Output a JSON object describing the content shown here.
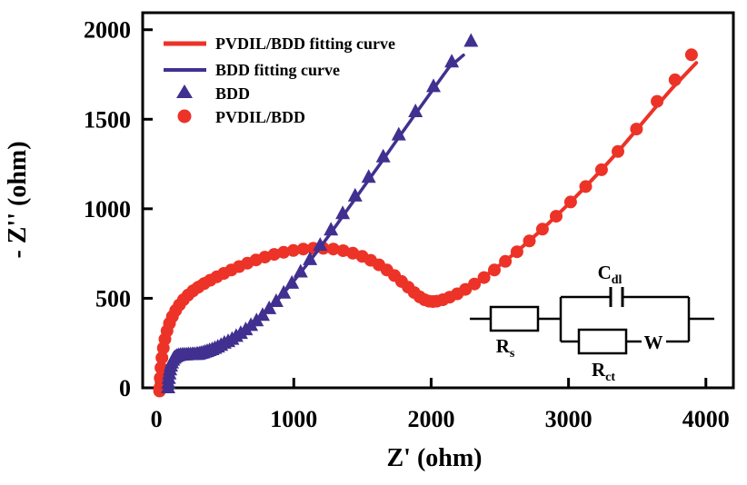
{
  "figure": {
    "xlabel": "Z' (ohm)",
    "ylabel": "- Z'' (ohm)"
  },
  "colors": {
    "red": "#ED3227",
    "navy": "#413090",
    "axis": "#000000",
    "background": "#FFFFFF"
  },
  "legend": {
    "items": [
      {
        "label": "PVDIL/BDD fitting curve",
        "marker": "line",
        "color": "#ED3227"
      },
      {
        "label": "BDD fitting curve",
        "marker": "line",
        "color": "#413090"
      },
      {
        "label": "BDD",
        "marker": "triangle",
        "color": "#413090"
      },
      {
        "label": "PVDIL/BDD",
        "marker": "circle",
        "color": "#ED3227"
      }
    ]
  },
  "inset_circuit": {
    "rs": {
      "main": "R",
      "sub": "s"
    },
    "cdl": {
      "main": "C",
      "sub": "dl"
    },
    "rct": {
      "main": "R",
      "sub": "ct"
    },
    "warburg": "W"
  },
  "chart_data": {
    "type": "scatter",
    "title": "",
    "xlabel": "Z' (ohm)",
    "ylabel": "- Z'' (ohm)",
    "xlim": [
      -100,
      4200
    ],
    "ylim": [
      0,
      2095
    ],
    "grid": false,
    "legend_position": "upper-left",
    "xticks": {
      "values": [
        0,
        1000,
        2000,
        3000,
        4000
      ],
      "labels": [
        "0",
        "1000",
        "2000",
        "3000",
        "4000"
      ]
    },
    "yticks": {
      "values": [
        0,
        500,
        1000,
        1500,
        2000
      ],
      "labels": [
        "0",
        "500",
        "1000",
        "1500",
        "2000"
      ]
    },
    "series": [
      {
        "name": "PVDIL/BDD fitting curve",
        "id": "pvdil-bdd-fit-curve",
        "type": "line",
        "color": "#ED3227",
        "width": 4,
        "points": [
          [
            25,
            0
          ],
          [
            32,
            115
          ],
          [
            44,
            215
          ],
          [
            62,
            300
          ],
          [
            88,
            372
          ],
          [
            122,
            434
          ],
          [
            163,
            487
          ],
          [
            212,
            532
          ],
          [
            268,
            570
          ],
          [
            330,
            601
          ],
          [
            398,
            627
          ],
          [
            472,
            652
          ],
          [
            552,
            675
          ],
          [
            638,
            697
          ],
          [
            730,
            717
          ],
          [
            827,
            736
          ],
          [
            928,
            753
          ],
          [
            1030,
            766
          ],
          [
            1130,
            776
          ],
          [
            1180,
            779
          ],
          [
            1230,
            777
          ],
          [
            1330,
            768
          ],
          [
            1428,
            750
          ],
          [
            1522,
            723
          ],
          [
            1610,
            687
          ],
          [
            1690,
            643
          ],
          [
            1762,
            595
          ],
          [
            1825,
            548
          ],
          [
            1877,
            510
          ],
          [
            1920,
            488
          ],
          [
            1958,
            480
          ],
          [
            1995,
            479
          ],
          [
            2035,
            483
          ],
          [
            2080,
            493
          ],
          [
            2130,
            508
          ],
          [
            2185,
            528
          ],
          [
            2245,
            553
          ],
          [
            2310,
            583
          ],
          [
            2380,
            618
          ],
          [
            2455,
            659
          ],
          [
            2535,
            706
          ],
          [
            2620,
            759
          ],
          [
            2710,
            818
          ],
          [
            2805,
            883
          ],
          [
            2905,
            955
          ],
          [
            3010,
            1034
          ],
          [
            3120,
            1120
          ],
          [
            3235,
            1213
          ],
          [
            3355,
            1315
          ],
          [
            3480,
            1427
          ],
          [
            3615,
            1550
          ],
          [
            3760,
            1678
          ],
          [
            3930,
            1815
          ]
        ]
      },
      {
        "name": "PVDIL/BDD",
        "id": "pvdil-bdd-data",
        "type": "scatter",
        "marker": "circle",
        "size": 7,
        "color": "#ED3227",
        "points": [
          [
            23,
            -18
          ],
          [
            25,
            0
          ],
          [
            28,
            55
          ],
          [
            33,
            112
          ],
          [
            40,
            168
          ],
          [
            50,
            222
          ],
          [
            62,
            272
          ],
          [
            77,
            318
          ],
          [
            95,
            360
          ],
          [
            116,
            398
          ],
          [
            140,
            432
          ],
          [
            167,
            463
          ],
          [
            197,
            492
          ],
          [
            230,
            518
          ],
          [
            266,
            541
          ],
          [
            305,
            562
          ],
          [
            347,
            582
          ],
          [
            392,
            601
          ],
          [
            440,
            620
          ],
          [
            491,
            639
          ],
          [
            545,
            658
          ],
          [
            602,
            677
          ],
          [
            662,
            696
          ],
          [
            725,
            714
          ],
          [
            790,
            730
          ],
          [
            857,
            745
          ],
          [
            926,
            757
          ],
          [
            997,
            767
          ],
          [
            1069,
            775
          ],
          [
            1142,
            779
          ],
          [
            1215,
            779
          ],
          [
            1288,
            775
          ],
          [
            1360,
            766
          ],
          [
            1430,
            752
          ],
          [
            1498,
            734
          ],
          [
            1560,
            712
          ],
          [
            1620,
            687
          ],
          [
            1678,
            658
          ],
          [
            1733,
            627
          ],
          [
            1785,
            594
          ],
          [
            1833,
            562
          ],
          [
            1877,
            532
          ],
          [
            1917,
            508
          ],
          [
            1952,
            492
          ],
          [
            1983,
            484
          ],
          [
            2012,
            482
          ],
          [
            2042,
            484
          ],
          [
            2085,
            492
          ],
          [
            2135,
            506
          ],
          [
            2190,
            525
          ],
          [
            2250,
            550
          ],
          [
            2315,
            580
          ],
          [
            2385,
            616
          ],
          [
            2460,
            658
          ],
          [
            2540,
            706
          ],
          [
            2625,
            760
          ],
          [
            2715,
            820
          ],
          [
            2810,
            886
          ],
          [
            2910,
            958
          ],
          [
            3015,
            1038
          ],
          [
            3125,
            1124
          ],
          [
            3240,
            1218
          ],
          [
            3360,
            1320
          ],
          [
            3495,
            1445
          ],
          [
            3645,
            1600
          ],
          [
            3775,
            1720
          ],
          [
            3895,
            1860
          ]
        ]
      },
      {
        "name": "BDD fitting curve",
        "id": "bdd-fit-curve",
        "type": "line",
        "color": "#413090",
        "width": 3.5,
        "points": [
          [
            88,
            0
          ],
          [
            95,
            60
          ],
          [
            104,
            110
          ],
          [
            116,
            148
          ],
          [
            132,
            170
          ],
          [
            152,
            180
          ],
          [
            180,
            184
          ],
          [
            215,
            185
          ],
          [
            255,
            186
          ],
          [
            300,
            187
          ],
          [
            350,
            198
          ],
          [
            400,
            211
          ],
          [
            455,
            230
          ],
          [
            515,
            256
          ],
          [
            580,
            287
          ],
          [
            650,
            324
          ],
          [
            725,
            371
          ],
          [
            805,
            429
          ],
          [
            890,
            498
          ],
          [
            980,
            578
          ],
          [
            1075,
            668
          ],
          [
            1175,
            766
          ],
          [
            1280,
            876
          ],
          [
            1390,
            994
          ],
          [
            1505,
            1118
          ],
          [
            1625,
            1247
          ],
          [
            1750,
            1384
          ],
          [
            1880,
            1524
          ],
          [
            2015,
            1668
          ],
          [
            2130,
            1790
          ],
          [
            2235,
            1858
          ]
        ]
      },
      {
        "name": "BDD",
        "id": "bdd-data",
        "type": "scatter",
        "marker": "triangle",
        "size": 8,
        "color": "#413090",
        "points": [
          [
            85,
            0
          ],
          [
            87,
            26
          ],
          [
            90,
            52
          ],
          [
            94,
            77
          ],
          [
            99,
            100
          ],
          [
            105,
            121
          ],
          [
            112,
            139
          ],
          [
            120,
            154
          ],
          [
            129,
            165
          ],
          [
            139,
            172
          ],
          [
            150,
            177
          ],
          [
            162,
            180
          ],
          [
            175,
            182
          ],
          [
            189,
            183
          ],
          [
            203,
            184
          ],
          [
            218,
            184
          ],
          [
            233,
            185
          ],
          [
            248,
            185
          ],
          [
            263,
            186
          ],
          [
            278,
            186
          ],
          [
            293,
            187
          ],
          [
            300,
            186
          ],
          [
            312,
            189
          ],
          [
            325,
            192
          ],
          [
            339,
            195
          ],
          [
            354,
            199
          ],
          [
            370,
            203
          ],
          [
            387,
            208
          ],
          [
            406,
            213
          ],
          [
            426,
            220
          ],
          [
            447,
            228
          ],
          [
            470,
            237
          ],
          [
            495,
            249
          ],
          [
            522,
            258
          ],
          [
            551,
            271
          ],
          [
            581,
            287
          ],
          [
            614,
            304
          ],
          [
            650,
            324
          ],
          [
            688,
            348
          ],
          [
            729,
            374
          ],
          [
            773,
            405
          ],
          [
            821,
            442
          ],
          [
            872,
            482
          ],
          [
            927,
            529
          ],
          [
            986,
            584
          ],
          [
            1050,
            647
          ],
          [
            1118,
            716
          ],
          [
            1192,
            796
          ],
          [
            1271,
            881
          ],
          [
            1356,
            973
          ],
          [
            1447,
            1071
          ],
          [
            1545,
            1176
          ],
          [
            1651,
            1290
          ],
          [
            1764,
            1412
          ],
          [
            1886,
            1542
          ],
          [
            2017,
            1682
          ],
          [
            2150,
            1820
          ],
          [
            2290,
            1935
          ]
        ]
      }
    ]
  }
}
